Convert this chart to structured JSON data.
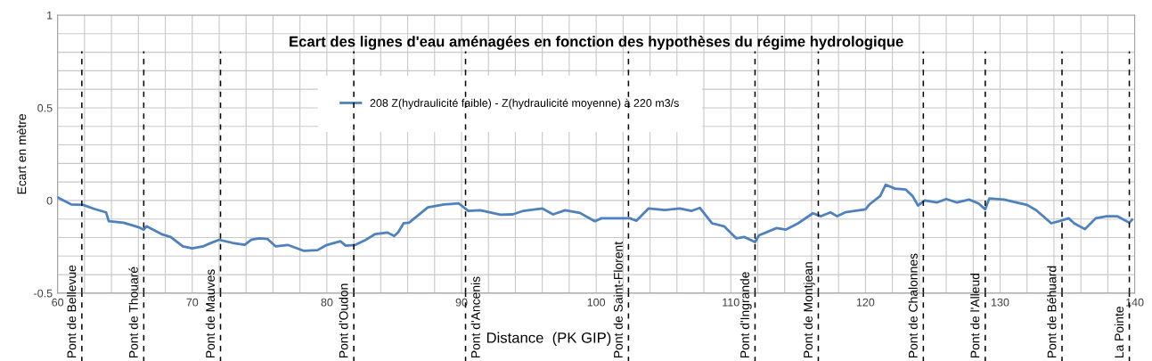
{
  "chart_data": {
    "type": "line",
    "title": "Ecart des lignes d'eau aménagées en fonction des hypothèses du régime hydrologique",
    "xlabel": "Distance  (PK GIP)",
    "ylabel": "Ecart en mètre",
    "x": [
      60,
      61.0,
      61.9,
      62.7,
      63.6,
      63.8,
      64.9,
      66.0,
      66.4,
      66.6,
      67.8,
      68.4,
      69.3,
      70.0,
      70.8,
      71.3,
      72.0,
      73.0,
      73.9,
      74.4,
      75.0,
      75.6,
      76.2,
      77.1,
      78.3,
      79.3,
      80.0,
      81.0,
      81.4,
      82.1,
      82.8,
      83.6,
      84.5,
      85.0,
      85.3,
      85.7,
      86.1,
      87.5,
      88.7,
      89.8,
      90.5,
      91.4,
      92.9,
      93.8,
      94.6,
      96.0,
      96.8,
      97.7,
      98.8,
      99.9,
      100.4,
      101.2,
      102.5,
      103.0,
      103.9,
      105.1,
      106.2,
      107.1,
      107.7,
      108.6,
      109.5,
      110.4,
      111.0,
      111.8,
      112.1,
      113.4,
      114.1,
      115.0,
      116.1,
      116.7,
      117.4,
      117.9,
      118.5,
      120.0,
      120.3,
      121.1,
      121.5,
      122.2,
      123.0,
      123.5,
      123.9,
      124.4,
      125.3,
      126.0,
      126.8,
      127.7,
      128.4,
      128.9,
      129.2,
      130.3,
      131.2,
      132.0,
      132.7,
      133.8,
      134.5,
      135.1,
      135.5,
      136.3,
      137.1,
      137.9,
      138.7,
      139.6,
      139.8
    ],
    "series": [
      {
        "name": "208 Z(hydraulicité faible) - Z(hydraulicité moyenne) à 220 m3/s",
        "color": "#4f81bd",
        "values": [
          0.016,
          -0.021,
          -0.024,
          -0.045,
          -0.064,
          -0.112,
          -0.12,
          -0.144,
          -0.158,
          -0.139,
          -0.184,
          -0.197,
          -0.248,
          -0.258,
          -0.248,
          -0.232,
          -0.212,
          -0.229,
          -0.239,
          -0.212,
          -0.204,
          -0.208,
          -0.248,
          -0.24,
          -0.272,
          -0.268,
          -0.24,
          -0.22,
          -0.244,
          -0.24,
          -0.216,
          -0.181,
          -0.173,
          -0.192,
          -0.171,
          -0.123,
          -0.12,
          -0.037,
          -0.021,
          -0.016,
          -0.056,
          -0.053,
          -0.077,
          -0.075,
          -0.056,
          -0.043,
          -0.075,
          -0.053,
          -0.067,
          -0.112,
          -0.096,
          -0.096,
          -0.096,
          -0.109,
          -0.043,
          -0.051,
          -0.043,
          -0.056,
          -0.04,
          -0.123,
          -0.139,
          -0.204,
          -0.197,
          -0.224,
          -0.188,
          -0.149,
          -0.157,
          -0.123,
          -0.069,
          -0.085,
          -0.064,
          -0.085,
          -0.064,
          -0.048,
          -0.021,
          0.024,
          0.085,
          0.064,
          0.059,
          0.024,
          -0.027,
          0,
          -0.011,
          0.008,
          -0.011,
          0.005,
          -0.016,
          -0.048,
          0.011,
          0.005,
          -0.011,
          -0.024,
          -0.053,
          -0.123,
          -0.109,
          -0.096,
          -0.123,
          -0.155,
          -0.096,
          -0.085,
          -0.085,
          -0.12,
          -0.104
        ]
      }
    ],
    "xlim": [
      60,
      140
    ],
    "xticks": [
      60,
      {
        "value": 62,
        "label": null
      },
      {
        "value": 64,
        "label": null
      },
      {
        "value": 66,
        "label": null
      },
      {
        "value": 68,
        "label": null
      },
      70,
      {
        "value": 72,
        "label": null
      },
      {
        "value": 74,
        "label": null
      },
      {
        "value": 76,
        "label": null
      },
      {
        "value": 78,
        "label": null
      },
      80,
      {
        "value": 82,
        "label": null
      },
      {
        "value": 84,
        "label": null
      },
      {
        "value": 86,
        "label": null
      },
      {
        "value": 88,
        "label": null
      },
      90,
      {
        "value": 92,
        "label": null
      },
      {
        "value": 94,
        "label": null
      },
      {
        "value": 96,
        "label": null
      },
      {
        "value": 98,
        "label": null
      },
      100,
      {
        "value": 102,
        "label": null
      },
      {
        "value": 104,
        "label": null
      },
      {
        "value": 106,
        "label": null
      },
      {
        "value": 108,
        "label": null
      },
      110,
      {
        "value": 112,
        "label": null
      },
      {
        "value": 114,
        "label": null
      },
      {
        "value": 116,
        "label": null
      },
      {
        "value": 118,
        "label": null
      },
      120,
      {
        "value": 122,
        "label": null
      },
      {
        "value": 124,
        "label": null
      },
      {
        "value": 126,
        "label": null
      },
      {
        "value": 128,
        "label": null
      },
      130,
      {
        "value": 132,
        "label": null
      },
      {
        "value": 134,
        "label": null
      },
      {
        "value": 136,
        "label": null
      },
      {
        "value": 138,
        "label": null
      },
      140
    ],
    "ylim": [
      -0.5,
      1
    ],
    "yticks": [
      -0.5,
      {
        "value": -0.4,
        "label": null
      },
      {
        "value": -0.3,
        "label": null
      },
      {
        "value": -0.2,
        "label": null
      },
      {
        "value": -0.1,
        "label": null
      },
      0,
      {
        "value": 0.1,
        "label": null
      },
      {
        "value": 0.2,
        "label": null
      },
      {
        "value": 0.3,
        "label": null
      },
      {
        "value": 0.4,
        "label": null
      },
      0.5,
      {
        "value": 0.6,
        "label": null
      },
      {
        "value": 0.7,
        "label": null
      },
      {
        "value": 0.8,
        "label": null
      },
      {
        "value": 0.9,
        "label": null
      },
      1
    ],
    "grid": true,
    "legend": "top",
    "line_style": "solid",
    "ref_lines": [
      {
        "axis": "x",
        "value": 61.8,
        "label": "Pont de Bellevue",
        "line_style": "dashed",
        "color": "#000000"
      },
      {
        "axis": "x",
        "value": 66.4,
        "label": "Pont de Thouaré",
        "line_style": "dashed",
        "color": "#000000"
      },
      {
        "axis": "x",
        "value": 72.1,
        "label": "Pont de Mauves",
        "line_style": "dashed",
        "color": "#000000"
      },
      {
        "axis": "x",
        "value": 82.0,
        "label": "Pont d'Oudon",
        "line_style": "dashed",
        "color": "#000000"
      },
      {
        "axis": "x",
        "value": 90.3,
        "label": "Pont d'Ancenis",
        "line_style": "dashed",
        "color": "#000000"
      },
      {
        "axis": "x",
        "value": 102.4,
        "label": "Pont de Saint-Florent",
        "line_style": "dashed",
        "color": "#000000"
      },
      {
        "axis": "x",
        "value": 111.8,
        "label": "Pont d'Ingrande",
        "line_style": "dashed",
        "color": "#000000"
      },
      {
        "axis": "x",
        "value": 116.5,
        "label": "Pont de Montjean",
        "line_style": "dashed",
        "color": "#000000"
      },
      {
        "axis": "x",
        "value": 124.3,
        "label": "Pont de Chalonnes",
        "line_style": "dashed",
        "color": "#000000"
      },
      {
        "axis": "x",
        "value": 128.9,
        "label": "Pont de l'Alleud",
        "line_style": "dashed",
        "color": "#000000"
      },
      {
        "axis": "x",
        "value": 134.6,
        "label": "Pont de Béhuard",
        "line_style": "dashed",
        "color": "#000000"
      },
      {
        "axis": "x",
        "value": 139.6,
        "label": "La Pointe",
        "line_style": "dashed",
        "color": "#000000"
      }
    ]
  }
}
